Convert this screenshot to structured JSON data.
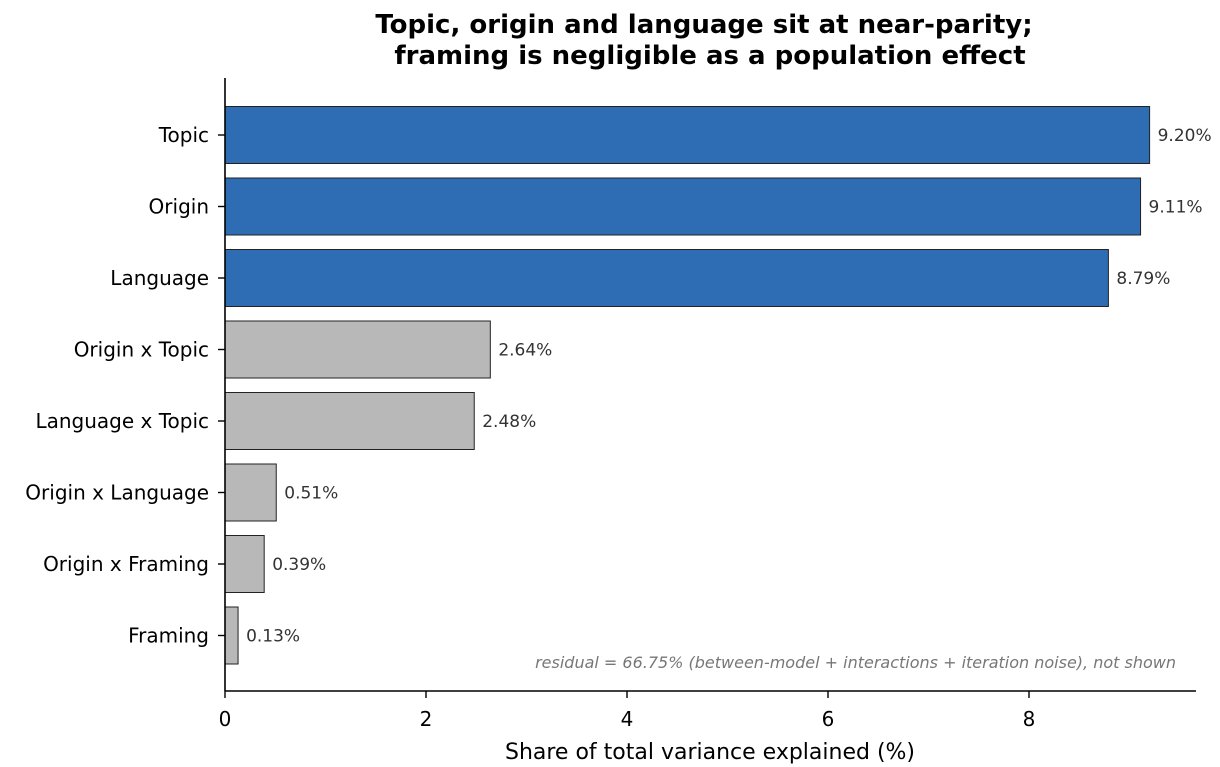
{
  "chart_data": {
    "type": "bar",
    "orientation": "horizontal",
    "title": [
      "Topic, origin and language sit at near-parity;",
      "framing is negligible as a population effect"
    ],
    "xlabel": "Share of total variance explained (%)",
    "ylabel": "",
    "xlim": [
      0,
      9.65
    ],
    "xticks": [
      0,
      2,
      4,
      6,
      8
    ],
    "categories": [
      "Topic",
      "Origin",
      "Language",
      "Origin x Topic",
      "Language x Topic",
      "Origin x Language",
      "Origin x Framing",
      "Framing"
    ],
    "values": [
      9.2,
      9.11,
      8.79,
      2.64,
      2.48,
      0.51,
      0.39,
      0.13
    ],
    "value_labels": [
      "9.20%",
      "9.11%",
      "8.79%",
      "2.64%",
      "2.48%",
      "0.51%",
      "0.39%",
      "0.13%"
    ],
    "highlight": [
      true,
      true,
      true,
      false,
      false,
      false,
      false,
      false
    ],
    "colors": {
      "highlight": "#2e6db4",
      "other": "#b8b8b8",
      "edge": "#222222"
    },
    "annotation": "residual = 66.75% (between-model + interactions + iteration noise), not shown",
    "grid": false
  }
}
